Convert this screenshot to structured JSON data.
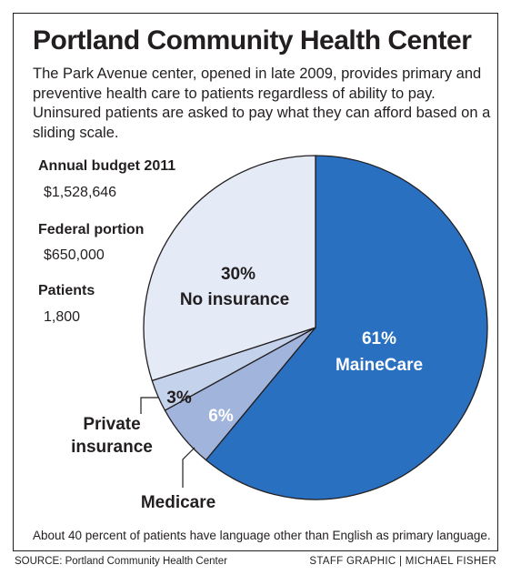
{
  "title": "Portland Community Health Center",
  "intro": "The Park Avenue center, opened in late 2009, provides primary and preventive health care to patients regardless of ability to pay. Uninsured patients are asked to pay what they can afford based on a sliding scale.",
  "stats": [
    {
      "label": "Annual budget 2011",
      "value": "$1,528,646"
    },
    {
      "label": "Federal portion",
      "value": "$650,000"
    },
    {
      "label": "Patients",
      "value": "1,800"
    }
  ],
  "footnote": "About 40 percent of patients have language other than English as primary language.",
  "source": "SOURCE: Portland Community Health Center",
  "credit": "STAFF GRAPHIC | MICHAEL FISHER",
  "chart_data": {
    "type": "pie",
    "slices": [
      {
        "name": "MaineCare",
        "value": 61,
        "label": "61%",
        "color": "#2a70c0"
      },
      {
        "name": "Medicare",
        "value": 6,
        "label": "6%",
        "color": "#a0b4dc"
      },
      {
        "name": "Private insurance",
        "value": 3,
        "label": "3%",
        "color": "#c4d2ec"
      },
      {
        "name": "No insurance",
        "value": 30,
        "label": "30%",
        "color": "#e4eaf6"
      }
    ],
    "callouts": {
      "private": "Private insurance",
      "medicare": "Medicare"
    }
  }
}
